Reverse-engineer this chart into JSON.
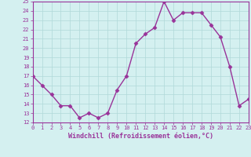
{
  "x": [
    0,
    1,
    2,
    3,
    4,
    5,
    6,
    7,
    8,
    9,
    10,
    11,
    12,
    13,
    14,
    15,
    16,
    17,
    18,
    19,
    20,
    21,
    22,
    23
  ],
  "y": [
    17,
    16,
    15,
    13.8,
    13.8,
    12.5,
    13,
    12.5,
    13,
    15.5,
    17,
    20.5,
    21.5,
    22.2,
    25,
    23,
    23.8,
    23.8,
    23.8,
    22.5,
    21.2,
    18,
    13.8,
    14.5
  ],
  "xlabel": "Windchill (Refroidissement éolien,°C)",
  "ylim": [
    12,
    25
  ],
  "xlim": [
    0,
    23
  ],
  "yticks": [
    12,
    13,
    14,
    15,
    16,
    17,
    18,
    19,
    20,
    21,
    22,
    23,
    24,
    25
  ],
  "xticks": [
    0,
    1,
    2,
    3,
    4,
    5,
    6,
    7,
    8,
    9,
    10,
    11,
    12,
    13,
    14,
    15,
    16,
    17,
    18,
    19,
    20,
    21,
    22,
    23
  ],
  "line_color": "#993399",
  "marker": "D",
  "bg_color": "#d4f0f0",
  "grid_color": "#b0d8d8",
  "label_color": "#993399",
  "tick_color": "#993399",
  "spine_color": "#993399"
}
